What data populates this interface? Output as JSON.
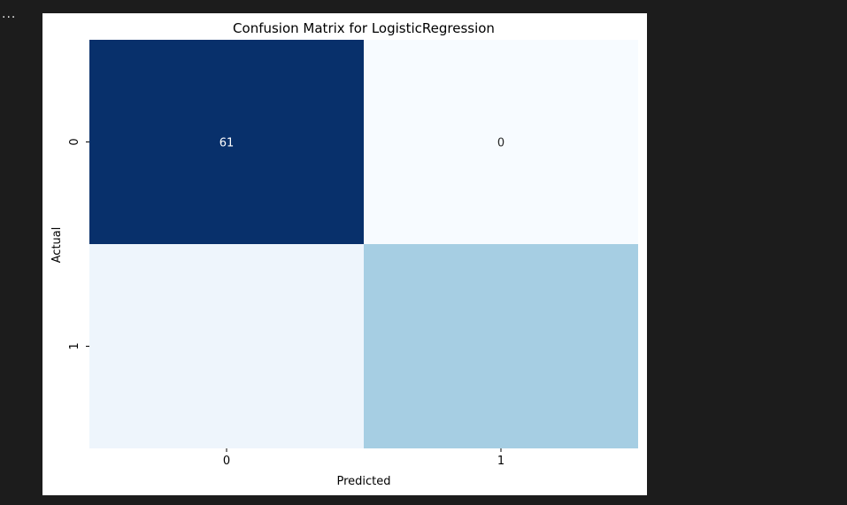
{
  "output": {
    "collapse_indicator": "..."
  },
  "chart_data": {
    "type": "heatmap",
    "title": "Confusion Matrix for LogisticRegression",
    "xlabel": "Predicted",
    "ylabel": "Actual",
    "x_categories": [
      "0",
      "1"
    ],
    "y_categories": [
      "0",
      "1"
    ],
    "values": [
      [
        61,
        0
      ],
      [
        null,
        null
      ]
    ],
    "cell_colors": [
      [
        "#08306b",
        "#f7fbff"
      ],
      [
        "#eef5fc",
        "#a6cee3"
      ]
    ],
    "annotations": [
      [
        "61",
        "0"
      ],
      [
        "",
        ""
      ]
    ],
    "colormap": "Blues",
    "colorbar": false,
    "grid": false
  }
}
